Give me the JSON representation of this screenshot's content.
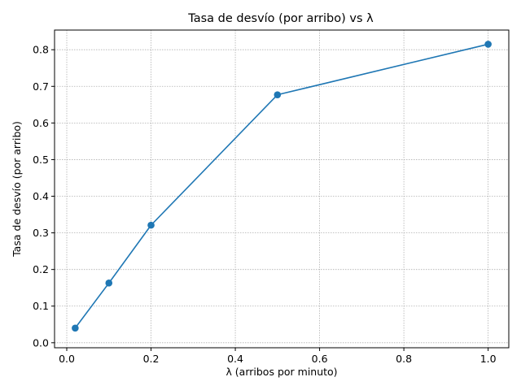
{
  "chart_data": {
    "type": "line",
    "title": "Tasa de desvío (por arribo) vs λ",
    "xlabel": "λ (arribos por minuto)",
    "ylabel": "Tasa de desvío (por arribo)",
    "x": [
      0.02,
      0.1,
      0.2,
      0.5,
      1.0
    ],
    "series": [
      {
        "values": [
          0.04,
          0.163,
          0.321,
          0.677,
          0.815
        ],
        "color": "#1f77b4",
        "marker": "circle"
      }
    ],
    "xlim": [
      -0.029,
      1.049
    ],
    "ylim": [
      -0.0137,
      0.8537
    ],
    "xticks": [
      0.0,
      0.2,
      0.4,
      0.6,
      0.8,
      1.0
    ],
    "xtick_labels": [
      "0.0",
      "0.2",
      "0.4",
      "0.6",
      "0.8",
      "1.0"
    ],
    "yticks": [
      0.0,
      0.1,
      0.2,
      0.3,
      0.4,
      0.5,
      0.6,
      0.7,
      0.8
    ],
    "ytick_labels": [
      "0.0",
      "0.1",
      "0.2",
      "0.3",
      "0.4",
      "0.5",
      "0.6",
      "0.7",
      "0.8"
    ],
    "grid": true
  }
}
